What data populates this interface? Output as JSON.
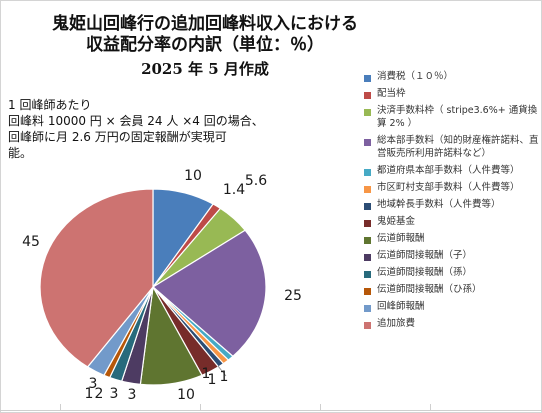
{
  "chart_data": {
    "type": "pie",
    "title_lines": [
      "鬼姫山回峰行の追加回峰料収入における",
      "収益配分率の内訳（単位：％）",
      "2025 年 5 月作成"
    ],
    "note_lines": [
      "1 回峰師あたり",
      "回峰料 10000 円 × 会員 24 人 ×4 回の場合、",
      "回峰師に月 2.6 万円の固定報酬が実現可",
      "能。"
    ],
    "legend_position": "right",
    "categories": [
      "消費税（１０％）",
      "配当枠",
      "決済手数料枠（ stripe3.6%+ 通貨換算 2% ）",
      "総本部手数料（知的財産権許諾料、直営販売所利用許諾料など）",
      "都道府県本部手数料（人件費等）",
      "市区町村支部手数料（人件費等）",
      "地域幹長手数料（人件費等）",
      "鬼姫基金",
      "伝道師報酬",
      "伝道師間接報酬（子）",
      "伝道師間接報酬（孫）",
      "伝道師間接報酬（ひ孫）",
      "回峰師報酬",
      "追加旅費"
    ],
    "values": [
      10,
      1.4,
      5.6,
      25,
      1,
      1,
      1,
      3,
      10,
      3,
      2,
      1,
      3,
      45
    ],
    "data_labels": [
      "10",
      "1.4",
      "5.6",
      "25",
      "1",
      "1",
      "1",
      "3",
      "10",
      "3",
      "2",
      "1",
      "3",
      "45"
    ],
    "colors": [
      "#4a7ebb",
      "#be4b48",
      "#98b954",
      "#7d60a0",
      "#46aac5",
      "#f79646",
      "#2c4d75",
      "#772c2a",
      "#5f7530",
      "#4d3b62",
      "#276a7c",
      "#b65708",
      "#729aca",
      "#cd7371"
    ]
  }
}
